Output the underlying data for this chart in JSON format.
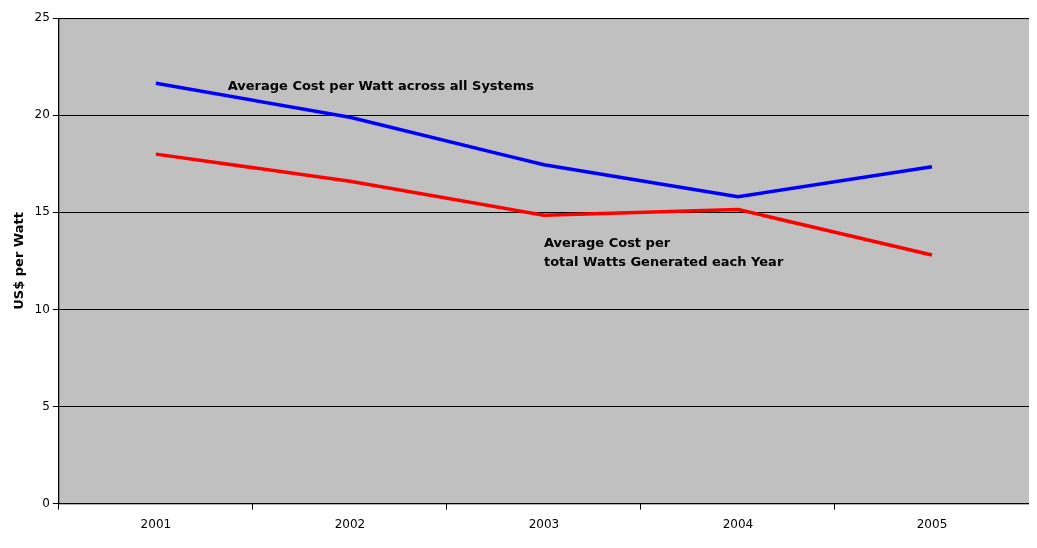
{
  "chart_data": {
    "type": "line",
    "ylabel": "US$ per Watt",
    "categories": [
      "2001",
      "2002",
      "2003",
      "2004",
      "2005"
    ],
    "series": [
      {
        "name": "Average Cost per Watt across all Systems",
        "color": "#0000ff",
        "values": [
          21.65,
          19.9,
          17.45,
          15.8,
          17.35
        ]
      },
      {
        "name": "Average Cost per  total Watts Generated each Year",
        "color": "#ff0000",
        "values": [
          18.0,
          16.6,
          14.85,
          15.15,
          12.8
        ]
      }
    ],
    "ylim": [
      0,
      25
    ],
    "yticks": [
      0,
      5,
      10,
      15,
      20,
      25
    ],
    "grid": "y",
    "legend": false,
    "marker": "none",
    "line_style": "solid"
  }
}
